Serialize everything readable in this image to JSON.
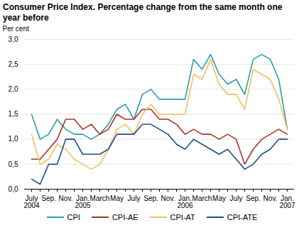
{
  "chart_data": {
    "type": "line",
    "title": "Consumer Price Index. Percentage change from the same month one year before",
    "y_label": "Per cent",
    "categories": [
      "July\n2004",
      null,
      "Sep.",
      null,
      "Nov.",
      null,
      "Jan.\n2005",
      null,
      "March",
      null,
      "May",
      null,
      "July",
      null,
      "Sep.",
      null,
      "Nov.",
      null,
      "Jan.\n2006",
      null,
      "March",
      null,
      "May",
      null,
      "July",
      null,
      "Sep.",
      null,
      "Nov.",
      null,
      "Jan.\n2007"
    ],
    "series": [
      {
        "name": "CPI",
        "color": "#2a9fa9",
        "values": [
          1.5,
          1.0,
          1.1,
          1.4,
          1.2,
          1.1,
          1.1,
          1.0,
          1.1,
          1.3,
          1.6,
          1.7,
          1.4,
          1.9,
          2.0,
          1.8,
          1.8,
          1.8,
          1.8,
          2.6,
          2.4,
          2.7,
          2.3,
          2.1,
          2.2,
          1.9,
          2.6,
          2.7,
          2.6,
          2.2,
          1.2
        ]
      },
      {
        "name": "CPI-AE",
        "color": "#a8322a",
        "values": [
          0.6,
          0.6,
          0.8,
          1.0,
          1.4,
          1.4,
          1.2,
          1.3,
          1.1,
          1.2,
          1.5,
          1.4,
          1.4,
          1.6,
          1.6,
          1.4,
          1.4,
          1.3,
          1.1,
          1.2,
          1.1,
          1.1,
          1.0,
          1.1,
          1.0,
          0.5,
          0.8,
          1.0,
          1.1,
          1.2,
          1.1
        ]
      },
      {
        "name": "CPI-AT",
        "color": "#f2c063",
        "values": [
          1.1,
          0.5,
          0.6,
          0.9,
          0.8,
          0.6,
          0.5,
          0.4,
          0.5,
          0.8,
          1.2,
          1.3,
          1.1,
          1.5,
          1.7,
          1.5,
          1.5,
          1.5,
          1.5,
          2.3,
          2.2,
          2.6,
          2.1,
          1.9,
          1.9,
          1.6,
          2.4,
          2.3,
          2.2,
          1.8,
          1.2
        ]
      },
      {
        "name": "CPI-ATE",
        "color": "#1f4e8c",
        "values": [
          0.2,
          0.1,
          0.5,
          0.5,
          1.0,
          1.0,
          0.7,
          0.7,
          0.7,
          0.8,
          1.1,
          1.1,
          1.1,
          1.3,
          1.3,
          1.2,
          1.1,
          0.9,
          0.8,
          1.0,
          0.9,
          0.8,
          0.7,
          0.8,
          0.6,
          0.4,
          0.5,
          0.7,
          0.8,
          1.0,
          1.0
        ]
      }
    ],
    "ylim": [
      0,
      3.0
    ],
    "yticks": [
      {
        "value": 0,
        "label": "0,0"
      },
      {
        "value": 0.5,
        "label": "0,5"
      },
      {
        "value": 1.0,
        "label": "1,0"
      },
      {
        "value": 1.5,
        "label": "1,5"
      },
      {
        "value": 2.0,
        "label": "2,0"
      },
      {
        "value": 2.5,
        "label": "2,5"
      },
      {
        "value": 3.0,
        "label": "3,0"
      }
    ],
    "grid": true,
    "legend": "bottom"
  }
}
